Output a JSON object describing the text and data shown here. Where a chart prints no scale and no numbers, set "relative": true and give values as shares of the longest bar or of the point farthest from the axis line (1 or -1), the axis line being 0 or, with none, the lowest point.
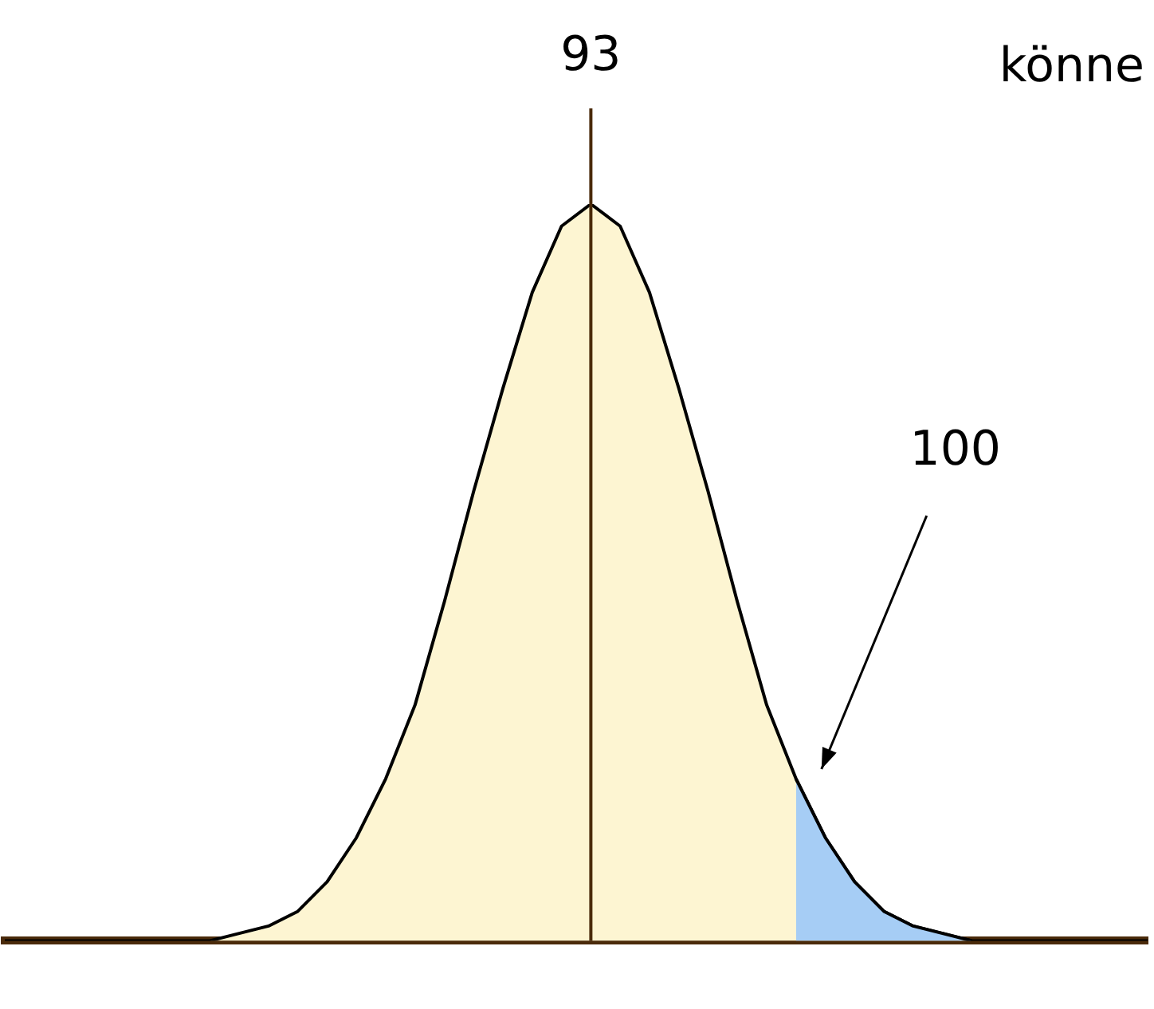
{
  "chart_data": {
    "type": "area",
    "relative": true,
    "grid": false,
    "legend": false,
    "categories": [
      null,
      null,
      null,
      null,
      null,
      null,
      null,
      null,
      null,
      null,
      null,
      null,
      null,
      null,
      null,
      null,
      null,
      null,
      null,
      null,
      null,
      null,
      null,
      null,
      null,
      null,
      null,
      null,
      null,
      null,
      null,
      null,
      null,
      null,
      null,
      null,
      null,
      null,
      null,
      null
    ],
    "series": [
      {
        "color": "#fdf5d2",
        "values": [
          0,
          0,
          0,
          0,
          0,
          0,
          0,
          0,
          0.01,
          0.02,
          0.04,
          0.08,
          0.14,
          0.22,
          0.32,
          0.46,
          0.61,
          0.75,
          0.88,
          0.97,
          1,
          0.97,
          0.88,
          0.75,
          0.61,
          0.46,
          0.32,
          0.22,
          0.14,
          0.08,
          0.04,
          0.02,
          0.01,
          0,
          0,
          0,
          0,
          0,
          0,
          0
        ]
      },
      {
        "color": "#a6cdf5",
        "values": [
          null,
          null,
          null,
          null,
          null,
          null,
          null,
          null,
          null,
          null,
          null,
          null,
          null,
          null,
          null,
          null,
          null,
          null,
          null,
          null,
          null,
          null,
          null,
          null,
          null,
          null,
          null,
          0.22,
          0.14,
          0.08,
          0.04,
          0.02,
          0.01,
          0,
          null,
          null,
          null,
          null,
          null,
          null
        ]
      }
    ],
    "annotations": [
      "93",
      "100",
      "könne"
    ]
  }
}
